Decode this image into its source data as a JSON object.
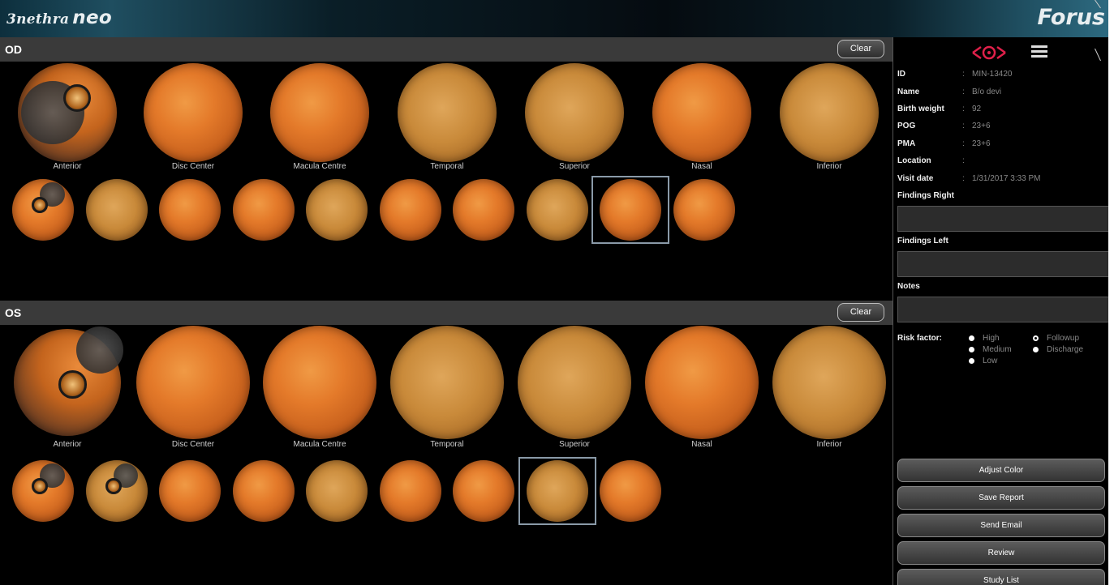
{
  "header": {
    "brand_prefix": "3nethra",
    "brand_suffix": "neo",
    "brand_right": "Forus"
  },
  "od": {
    "label": "OD",
    "clear_label": "Clear",
    "captions": [
      "Anterior",
      "Disc Center",
      "Macula Centre",
      "Temporal",
      "Superior",
      "Nasal",
      "Inferior"
    ],
    "thumb_count": 10,
    "selected_thumb": 9
  },
  "os": {
    "label": "OS",
    "clear_label": "Clear",
    "captions": [
      "Anterior",
      "Disc Center",
      "Macula Centre",
      "Temporal",
      "Superior",
      "Nasal",
      "Inferior"
    ],
    "thumb_count": 9,
    "selected_thumb": 8
  },
  "panel": {
    "info": [
      {
        "key": "ID",
        "sep": ":",
        "value": "MIN-13420"
      },
      {
        "key": "Name",
        "sep": ":",
        "value": "B/o devi"
      },
      {
        "key": "Birth weight",
        "sep": ":",
        "value": "92"
      },
      {
        "key": "POG",
        "sep": ":",
        "value": "23+6"
      },
      {
        "key": "PMA",
        "sep": ":",
        "value": "23+6"
      },
      {
        "key": "Location",
        "sep": ":",
        "value": ""
      },
      {
        "key": "Visit date",
        "sep": ":",
        "value": "1/31/2017 3:33 PM"
      }
    ],
    "findings_right_label": "Findings Right",
    "findings_left_label": "Findings Left",
    "notes_label": "Notes",
    "risk_label": "Risk factor:",
    "risk_options": [
      "High",
      "Medium",
      "Low"
    ],
    "followup_options": [
      "Followup",
      "Discharge"
    ],
    "buttons": [
      "Adjust Color",
      "Save Report",
      "Send Email",
      "Review",
      "Study List"
    ]
  }
}
